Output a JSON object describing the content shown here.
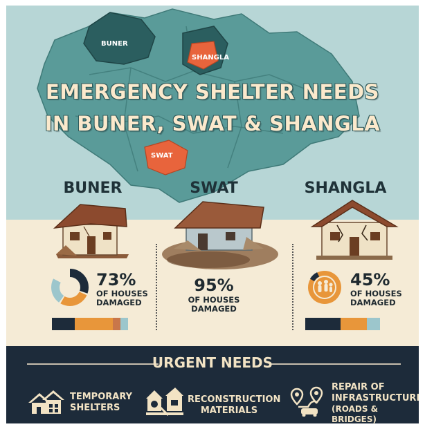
{
  "title": {
    "line1": "EMERGENCY SHELTER NEEDS",
    "line2": "IN BUNER, SWAT & SHANGLA"
  },
  "map": {
    "labels": {
      "buner": "BUNER",
      "shangla": "SHANGLA",
      "swat": "SWAT"
    },
    "colors": {
      "water": "#b7d6d6",
      "region": "#5a9b99",
      "buner": "#2b5e5f",
      "highlight": "#e8643c"
    }
  },
  "districts": [
    {
      "name": "BUNER",
      "percent": "73%",
      "label": "OF HOUSES\nDAMAGED",
      "damaged_fraction": 0.73
    },
    {
      "name": "SWAT",
      "percent": "95%",
      "label": "OF HOUSES\nDAMAGED",
      "damaged_fraction": 0.95
    },
    {
      "name": "SHANGLA",
      "percent": "45%",
      "label": "OF HOUSES\nDAMAGED",
      "damaged_fraction": 0.45
    }
  ],
  "needs": {
    "title": "URGENT NEEDS",
    "items": [
      {
        "line1": "TEMPORARY",
        "line2": "SHELTERS",
        "icon": "house-icon"
      },
      {
        "line1": "RECONSTRUCTION",
        "line2": "MATERIALS",
        "icon": "construction-materials-icon"
      },
      {
        "line1": "REPAIR OF",
        "line2": "INFRASTRUCTURE",
        "line3": "(ROADS & BRIDGES)",
        "icon": "infrastructure-icon"
      }
    ]
  },
  "palette": {
    "cream": "#f5ebd6",
    "dark": "#1d2b3a",
    "orange": "#e8963a",
    "teal": "#5a9b99",
    "light_blue": "#9cc6cc"
  }
}
